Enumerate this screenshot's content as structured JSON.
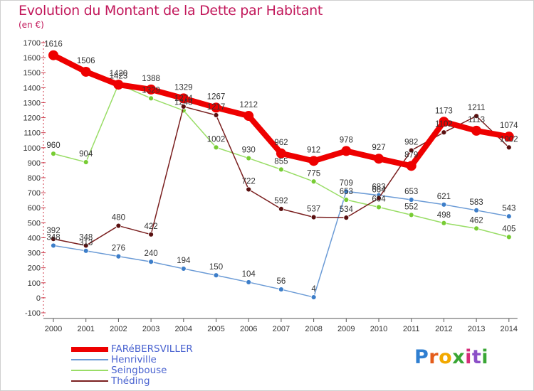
{
  "header": {
    "title": "Evolution du Montant de la Dette par Habitant",
    "unit": "(en €)"
  },
  "chart_data": {
    "type": "line",
    "x": [
      2000,
      2001,
      2002,
      2003,
      2004,
      2005,
      2006,
      2007,
      2008,
      2009,
      2010,
      2011,
      2012,
      2013,
      2014
    ],
    "ylim": [
      -100,
      1700
    ],
    "yticks": [
      -100,
      0,
      100,
      200,
      300,
      400,
      500,
      600,
      700,
      800,
      900,
      1000,
      1100,
      1200,
      1300,
      1400,
      1500,
      1600,
      1700
    ],
    "grid": false,
    "legend_position": "bottom-left",
    "series": [
      {
        "name": "FARéBERSVILLER",
        "color": "#ee0000",
        "width": 8,
        "marker": "#ee0000",
        "values": [
          1616,
          1506,
          1420,
          1388,
          1329,
          1267,
          1212,
          962,
          912,
          978,
          927,
          879,
          1173,
          1113,
          1074
        ]
      },
      {
        "name": "Henriville",
        "color": "#6b9bd6",
        "width": 1.5,
        "marker": "#3d7ec9",
        "values": [
          348,
          313,
          276,
          240,
          194,
          150,
          104,
          56,
          4,
          709,
          683,
          653,
          621,
          583,
          543
        ]
      },
      {
        "name": "Seingbouse",
        "color": "#99dd66",
        "width": 1.5,
        "marker": "#77cc33",
        "values": [
          960,
          904,
          1423,
          1329,
          1248,
          1002,
          930,
          855,
          775,
          653,
          604,
          552,
          498,
          462,
          405
        ]
      },
      {
        "name": "Théding",
        "color": "#7a1f1f",
        "width": 1.5,
        "marker": "#5a1010",
        "values": [
          392,
          348,
          480,
          422,
          1274,
          1217,
          722,
          592,
          537,
          534,
          664,
          982,
          1102,
          1211,
          1002
        ]
      }
    ]
  },
  "logo": {
    "text": "Proxiti"
  }
}
